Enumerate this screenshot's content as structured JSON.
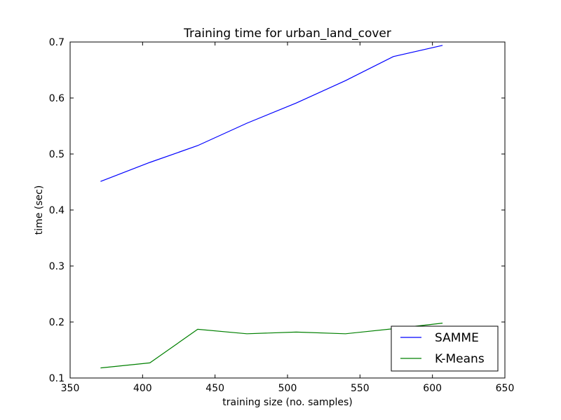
{
  "chart_data": {
    "type": "line",
    "title": "Training time for urban_land_cover",
    "xlabel": "training size (no. samples)",
    "ylabel": "time (sec)",
    "xlim": [
      350,
      650
    ],
    "ylim": [
      0.1,
      0.7
    ],
    "xticks": [
      350,
      400,
      450,
      500,
      550,
      600,
      650
    ],
    "xtick_labels": [
      "350",
      "400",
      "450",
      "500",
      "550",
      "600",
      "650"
    ],
    "yticks": [
      0.1,
      0.2,
      0.3,
      0.4,
      0.5,
      0.6,
      0.7
    ],
    "ytick_labels": [
      "0.1",
      "0.2",
      "0.3",
      "0.4",
      "0.5",
      "0.6",
      "0.7"
    ],
    "grid": false,
    "legend_position": "lower-right",
    "x": [
      371,
      405,
      438,
      472,
      506,
      540,
      573,
      607
    ],
    "series": [
      {
        "name": "SAMME",
        "color": "#0000ff",
        "values": [
          0.451,
          0.485,
          0.515,
          0.555,
          0.591,
          0.631,
          0.674,
          0.694
        ]
      },
      {
        "name": "K-Means",
        "color": "#008000",
        "values": [
          0.118,
          0.127,
          0.187,
          0.179,
          0.182,
          0.179,
          0.188,
          0.198
        ]
      }
    ]
  }
}
